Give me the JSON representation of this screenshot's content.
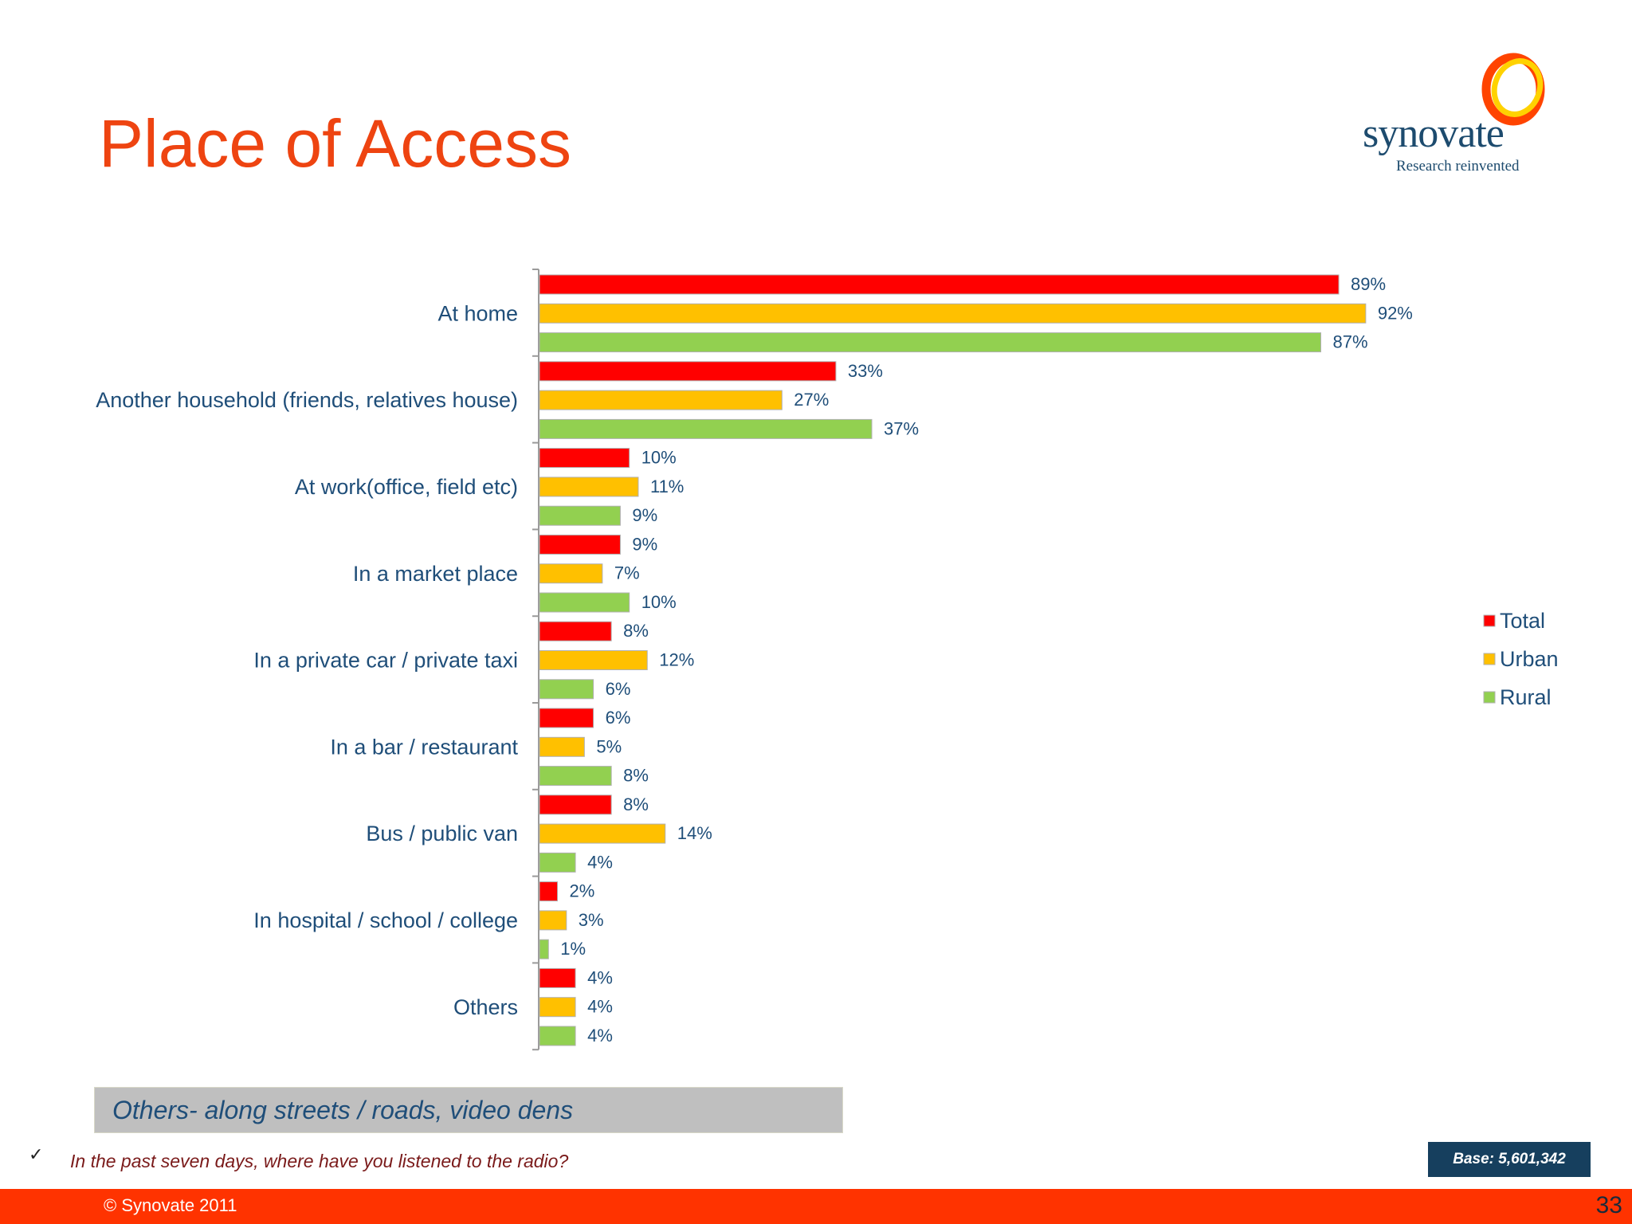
{
  "slide": {
    "title": "Place of Access",
    "logo": {
      "name": "synovate",
      "tagline": "Research reinvented"
    },
    "note": "Others- along streets / roads, video dens",
    "check_glyph": "✓",
    "question": "In the past seven days, where have you listened to the radio?",
    "base": "Base: 5,601,342",
    "copyright": "© Synovate 2011",
    "page_number": "33"
  },
  "colors": {
    "title": "#ee4411",
    "total": "#ff0000",
    "urban": "#ffc000",
    "rural": "#92d050",
    "label_text": "#1f4e79",
    "footer": "#ff3300",
    "base_box": "#163f5e"
  },
  "chart_data": {
    "type": "bar",
    "orientation": "horizontal",
    "title": "",
    "xlabel": "",
    "ylabel": "",
    "xlim": [
      0,
      100
    ],
    "grid": false,
    "legend": "right",
    "categories": [
      "At home",
      "Another household (friends, relatives house)",
      "At work(office, field etc)",
      "In a market place",
      "In a private car / private taxi",
      "In a bar / restaurant",
      "Bus /  public van",
      "In hospital / school / college",
      "Others"
    ],
    "series": [
      {
        "name": "Total",
        "color": "#ff0000",
        "values": [
          89,
          33,
          10,
          9,
          8,
          6,
          8,
          2,
          4
        ]
      },
      {
        "name": "Urban",
        "color": "#ffc000",
        "values": [
          92,
          27,
          11,
          7,
          12,
          5,
          14,
          3,
          4
        ]
      },
      {
        "name": "Rural",
        "color": "#92d050",
        "values": [
          87,
          37,
          9,
          10,
          6,
          8,
          4,
          1,
          4
        ]
      }
    ],
    "value_suffix": "%"
  }
}
